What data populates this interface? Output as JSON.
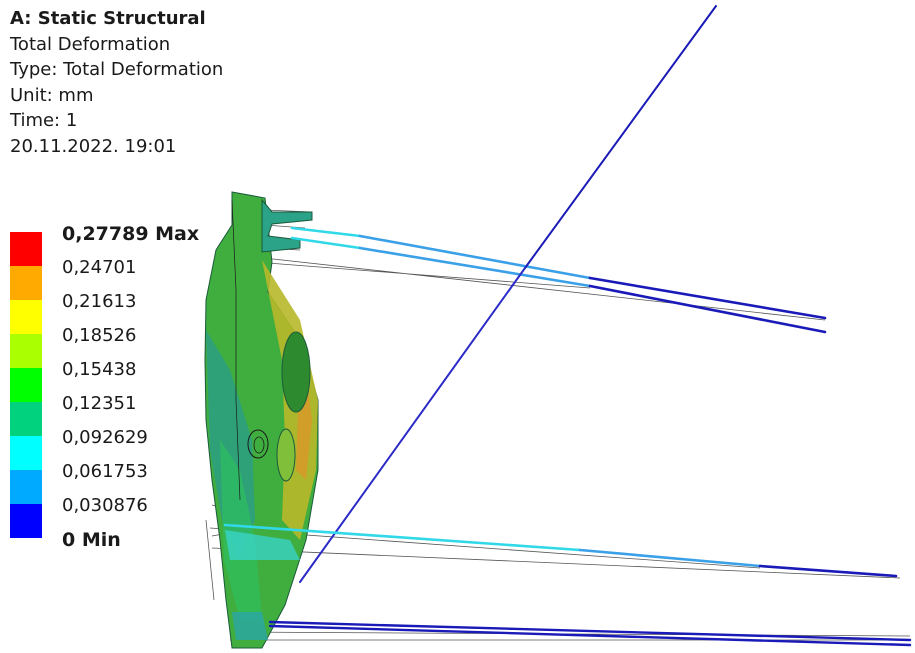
{
  "header": {
    "title": "A: Static Structural",
    "result_name": "Total Deformation",
    "type_line": "Type: Total Deformation",
    "unit_line": "Unit: mm",
    "time_line": "Time: 1",
    "timestamp": "20.11.2022. 19:01"
  },
  "legend": {
    "labels": [
      "0,27789 Max",
      "0,24701",
      "0,21613",
      "0,18526",
      "0,15438",
      "0,12351",
      "0,092629",
      "0,061753",
      "0,030876",
      "0 Min"
    ],
    "colors": [
      "#ff0000",
      "#ffaa00",
      "#ffff00",
      "#aaff00",
      "#00ff00",
      "#00d27e",
      "#00ffff",
      "#00aaff",
      "#0000ff"
    ]
  },
  "model": {
    "palette": {
      "body_green": "#3fae3f",
      "body_yellow": "#b8b82a",
      "body_orange": "#d79a2a",
      "body_teal": "#2c9f83",
      "edge_dark": "#1b5a3a",
      "wire_blue": "#1a1ab8",
      "wire_cyan": "#30d8e8",
      "ghost_lines": "#555555"
    }
  }
}
